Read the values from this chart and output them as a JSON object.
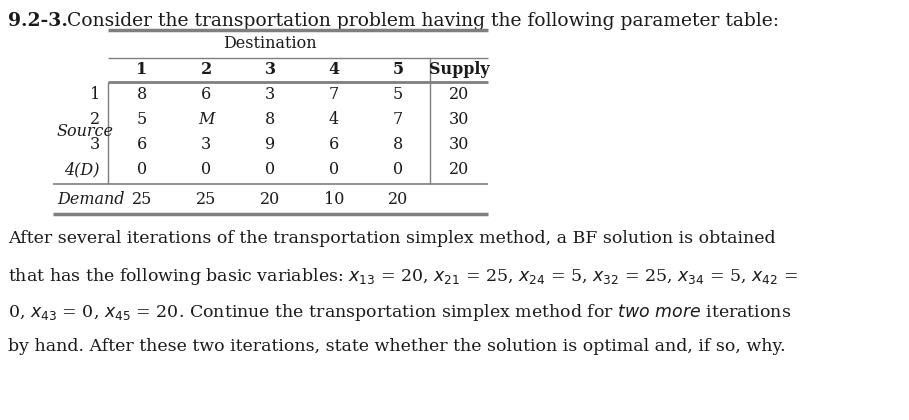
{
  "title_bold": "9.2-3.",
  "title_rest": " Consider the transportation problem having the following parameter table:",
  "table": {
    "dest_header": "Destination",
    "col_headers": [
      "1",
      "2",
      "3",
      "4",
      "5",
      "Supply"
    ],
    "row_labels": [
      "1",
      "2",
      "3",
      "4(D)"
    ],
    "source_label": "Source",
    "demand_label": "Demand",
    "data": [
      [
        "8",
        "6",
        "3",
        "7",
        "5",
        "20"
      ],
      [
        "5",
        "M",
        "8",
        "4",
        "7",
        "30"
      ],
      [
        "6",
        "3",
        "9",
        "6",
        "8",
        "30"
      ],
      [
        "0",
        "0",
        "0",
        "0",
        "0",
        "20"
      ]
    ],
    "demand_row": [
      "25",
      "25",
      "20",
      "10",
      "20"
    ]
  },
  "bg_color": "#ffffff",
  "table_line_color": "#7f7f7f",
  "text_color": "#1a1a1a",
  "font_size_title": 13.5,
  "font_size_table": 11.5,
  "font_size_para": 12.5
}
